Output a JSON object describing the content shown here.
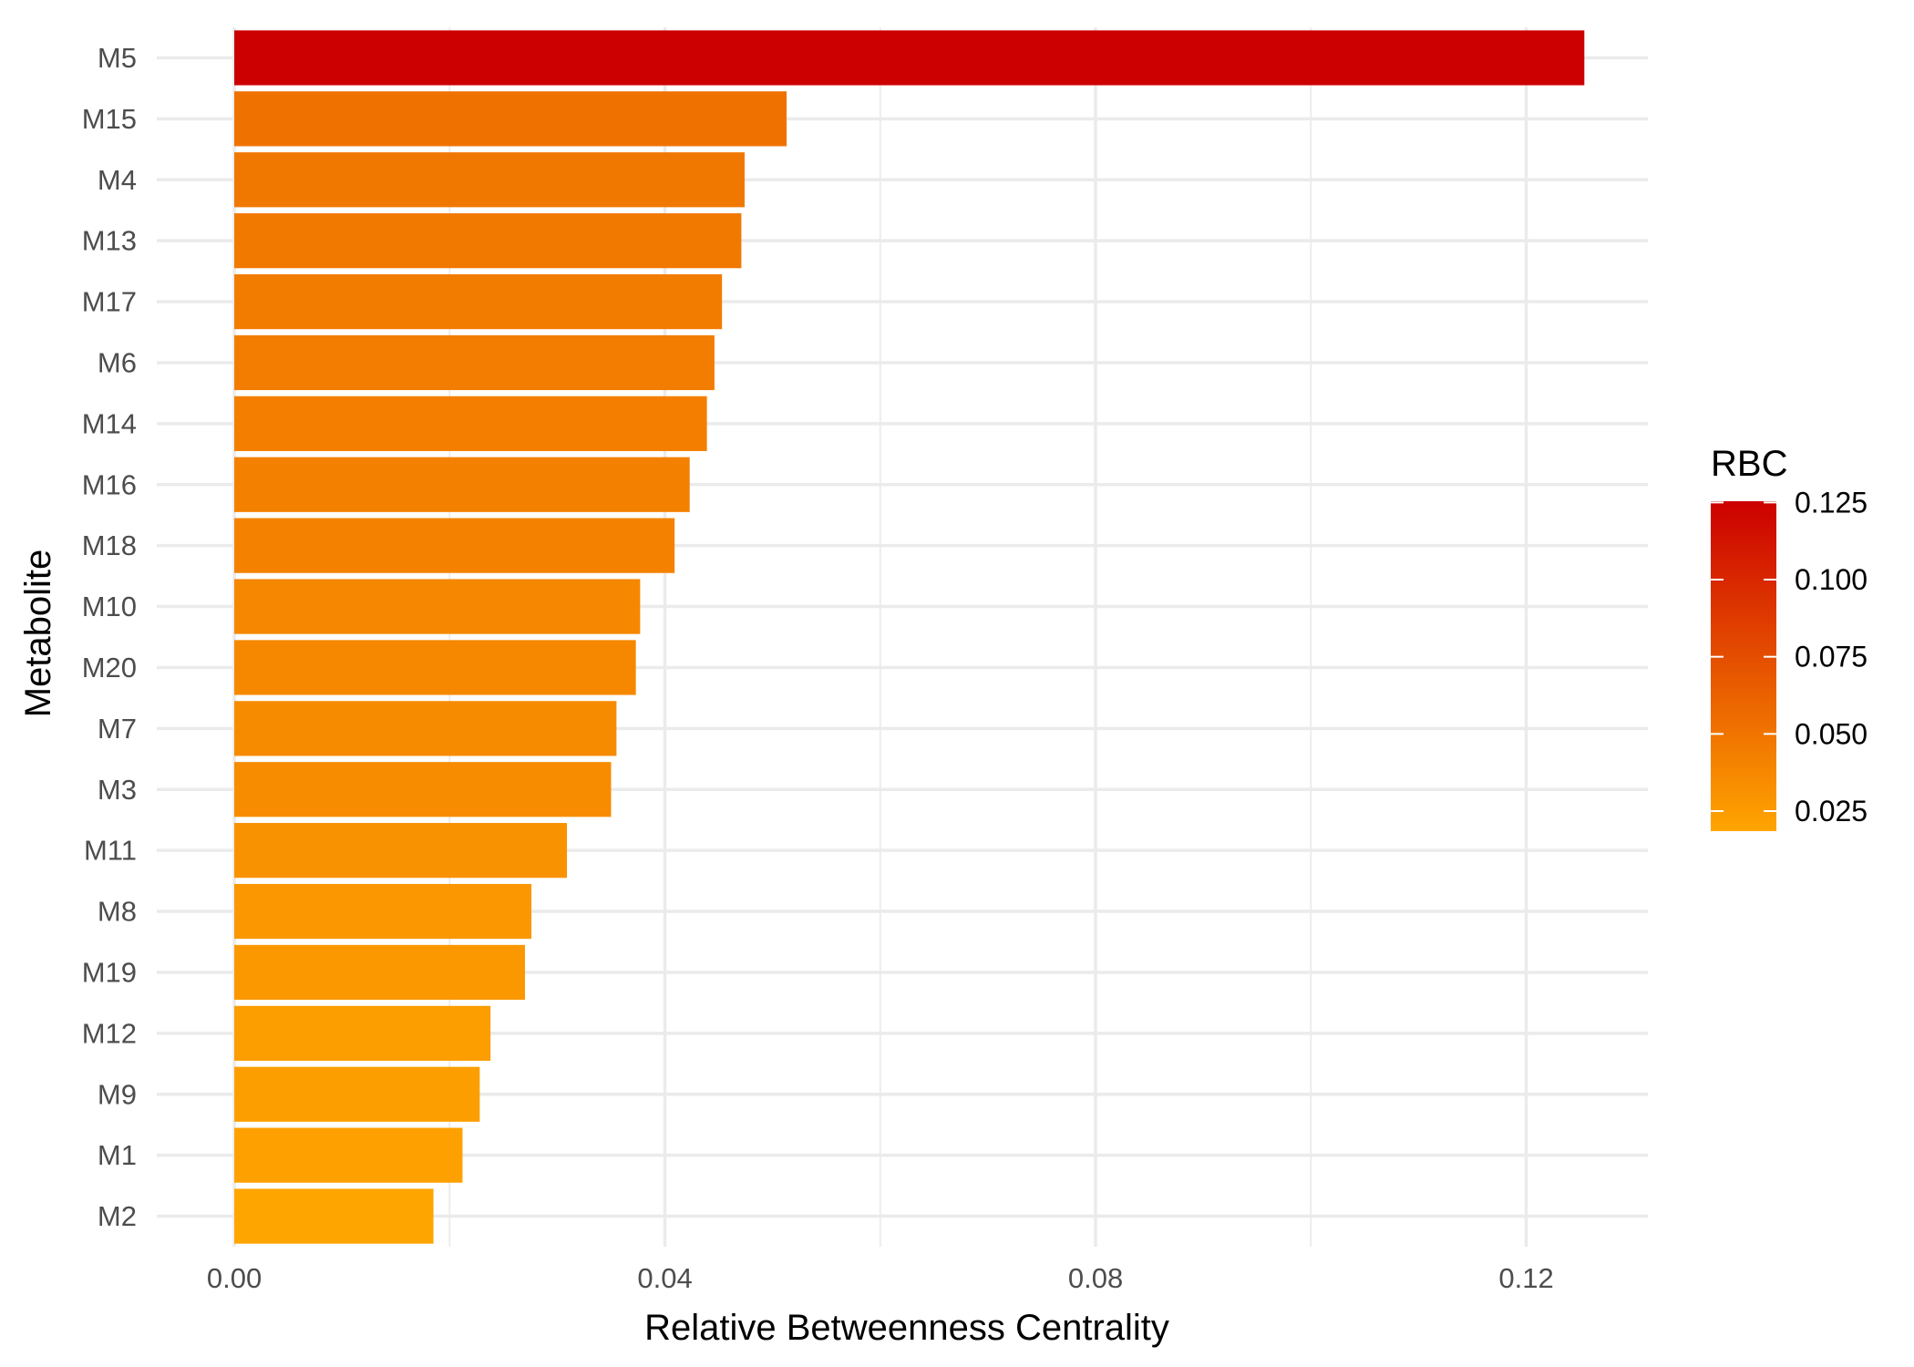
{
  "chart_data": {
    "type": "bar",
    "orientation": "horizontal",
    "xlabel": "Relative Betweenness Centrality",
    "ylabel": "Metabolite",
    "xlim": [
      -0.0072,
      0.1313
    ],
    "x_ticks": [
      0.0,
      0.04,
      0.08,
      0.12
    ],
    "x_tick_labels": [
      "0.00",
      "0.04",
      "0.08",
      "0.12"
    ],
    "categories": [
      "M5",
      "M15",
      "M4",
      "M13",
      "M17",
      "M6",
      "M14",
      "M16",
      "M18",
      "M10",
      "M20",
      "M7",
      "M3",
      "M11",
      "M8",
      "M19",
      "M12",
      "M9",
      "M1",
      "M2"
    ],
    "values": [
      0.1254,
      0.0513,
      0.0474,
      0.0471,
      0.0453,
      0.0446,
      0.0439,
      0.0423,
      0.0409,
      0.0377,
      0.0373,
      0.0355,
      0.035,
      0.0309,
      0.0276,
      0.027,
      0.0238,
      0.0228,
      0.0212,
      0.0185
    ],
    "grid": true,
    "legend": {
      "title": "RBC",
      "placement": "right",
      "type": "colorbar",
      "range": [
        0.0185,
        0.1254
      ],
      "ticks": [
        0.125,
        0.1,
        0.075,
        0.05,
        0.025
      ],
      "tick_labels": [
        "0.125",
        "0.100",
        "0.075",
        "0.050",
        "0.025"
      ],
      "color_low": "#FFA500",
      "color_high": "#CC0000"
    }
  }
}
